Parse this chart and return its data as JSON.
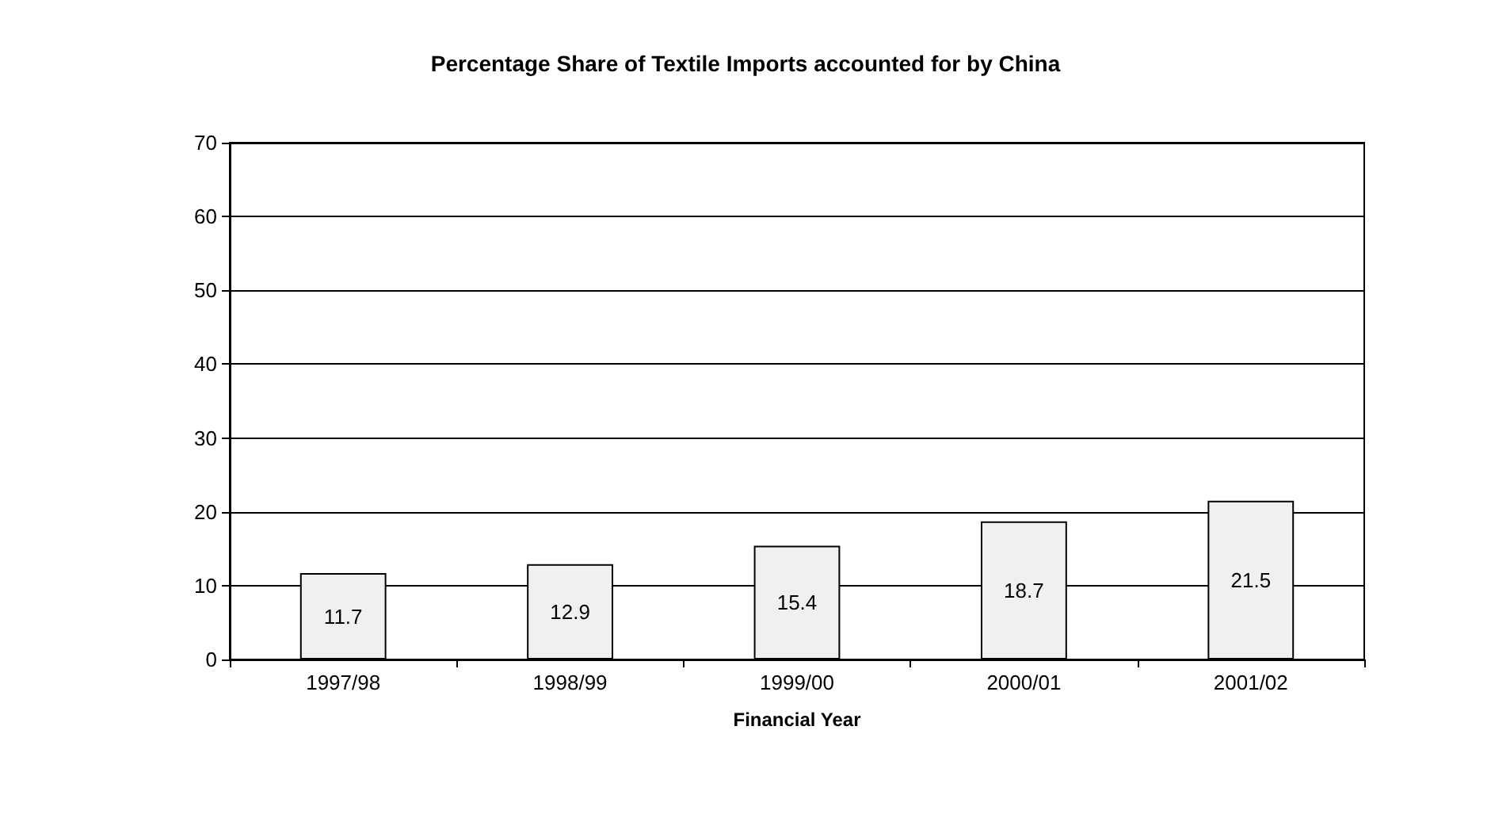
{
  "chart_data": {
    "type": "bar",
    "title": "Percentage Share of Textile Imports accounted for by China",
    "xlabel": "Financial Year",
    "categories": [
      "1997/98",
      "1998/99",
      "1999/00",
      "2000/01",
      "2001/02"
    ],
    "values": [
      11.7,
      12.9,
      15.4,
      18.7,
      21.5
    ],
    "color": "#f0f0f0",
    "ylim": [
      0,
      70
    ],
    "yticks": [
      0,
      10,
      20,
      30,
      40,
      50,
      60,
      70
    ],
    "grid": "y",
    "data_labels": true
  }
}
